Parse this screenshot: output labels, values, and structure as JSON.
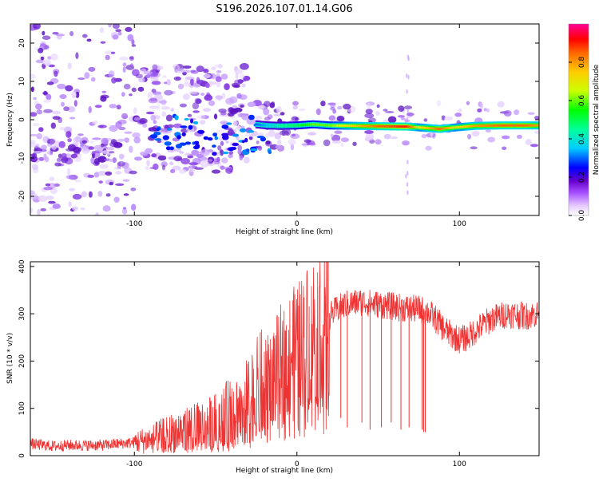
{
  "title": "S196.2026.107.01.14.G06",
  "chart_data": [
    {
      "type": "heatmap",
      "xlabel": "Height of straight line (km)",
      "ylabel": "Frequency (Hz)",
      "xlim": [
        -164,
        149
      ],
      "ylim": [
        -25,
        25
      ],
      "x_ticks": [
        -100,
        0,
        100
      ],
      "y_ticks": [
        -20,
        -10,
        0,
        10,
        20
      ],
      "colorbar": {
        "label": "Normalized spectral amplitude",
        "range": [
          0,
          1
        ],
        "ticks": [
          0.0,
          0.2,
          0.4,
          0.6,
          0.8
        ]
      },
      "tone_track": [
        {
          "x": -25,
          "freq": -1.2,
          "amp": 0.3
        },
        {
          "x": -18,
          "freq": -1.5,
          "amp": 0.35
        },
        {
          "x": -10,
          "freq": -1.6,
          "amp": 0.45
        },
        {
          "x": 0,
          "freq": -1.5,
          "amp": 0.5
        },
        {
          "x": 10,
          "freq": -1.2,
          "amp": 0.6
        },
        {
          "x": 20,
          "freq": -1.5,
          "amp": 0.6
        },
        {
          "x": 35,
          "freq": -1.6,
          "amp": 0.75
        },
        {
          "x": 50,
          "freq": -1.7,
          "amp": 0.85
        },
        {
          "x": 68,
          "freq": -1.8,
          "amp": 0.9
        },
        {
          "x": 75,
          "freq": -2.0,
          "amp": 0.7
        },
        {
          "x": 88,
          "freq": -2.4,
          "amp": 0.85
        },
        {
          "x": 98,
          "freq": -2.0,
          "amp": 0.7
        },
        {
          "x": 110,
          "freq": -1.6,
          "amp": 0.8
        },
        {
          "x": 125,
          "freq": -1.5,
          "amp": 0.85
        },
        {
          "x": 140,
          "freq": -1.5,
          "amp": 0.85
        },
        {
          "x": 149,
          "freq": -1.5,
          "amp": 0.8
        }
      ]
    },
    {
      "type": "line",
      "xlabel": "Height of straight line (km)",
      "ylabel": "SNR (10 * v/v)",
      "xlim": [
        -164,
        149
      ],
      "ylim": [
        0,
        410
      ],
      "x_ticks": [
        -100,
        0,
        100
      ],
      "y_ticks": [
        0,
        100,
        200,
        300,
        400
      ],
      "color": "#ee3333",
      "series": [
        {
          "name": "SNR",
          "x": [
            -164,
            -150,
            -140,
            -120,
            -100,
            -90,
            -80,
            -70,
            -60,
            -50,
            -40,
            -30,
            -20,
            -10,
            0,
            10,
            20,
            25,
            30,
            40,
            50,
            60,
            70,
            75,
            80,
            85,
            90,
            95,
            100,
            105,
            110,
            120,
            130,
            140,
            149
          ],
          "y": [
            25,
            20,
            22,
            22,
            28,
            35,
            45,
            55,
            60,
            70,
            90,
            110,
            150,
            200,
            230,
            270,
            295,
            310,
            320,
            325,
            320,
            315,
            310,
            310,
            305,
            290,
            270,
            255,
            245,
            250,
            265,
            290,
            300,
            295,
            300
          ]
        }
      ],
      "dropouts": [
        {
          "x": 18,
          "y": 100
        },
        {
          "x": 27,
          "y": 80
        },
        {
          "x": 31,
          "y": 60
        },
        {
          "x": 40,
          "y": 70
        },
        {
          "x": 45,
          "y": 55
        },
        {
          "x": 52,
          "y": 60
        },
        {
          "x": 58,
          "y": 70
        },
        {
          "x": 64,
          "y": 55
        },
        {
          "x": 69,
          "y": 60
        },
        {
          "x": 77,
          "y": 55
        },
        {
          "x": 78,
          "y": 50
        },
        {
          "x": 79,
          "y": 50
        }
      ],
      "peak": {
        "x": 19,
        "y": 410
      }
    }
  ]
}
